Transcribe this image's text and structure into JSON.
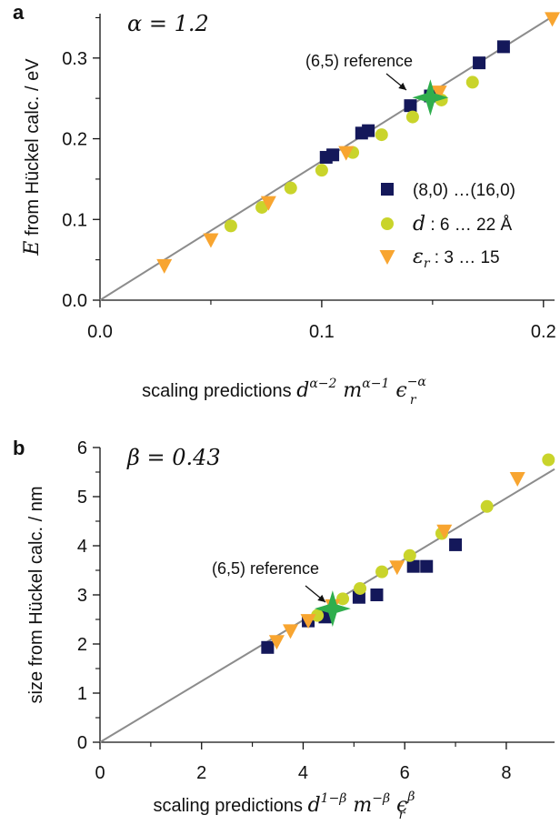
{
  "chart_data": [
    {
      "panel_label": "a",
      "type": "scatter",
      "param_text": "α = 1.2",
      "xlabel": "scaling predictions",
      "xlabel_math": {
        "d_exp": "α−2",
        "m_exp": "α−1",
        "eps_sub": "r",
        "eps_exp": "−α"
      },
      "ylabel_prefix": "E",
      "ylabel": " from Hückel calc. / eV",
      "xlim": [
        0,
        0.205
      ],
      "ylim": [
        0,
        0.355
      ],
      "xticks": [
        "0.0",
        "0.1",
        "0.2"
      ],
      "xtick_values": [
        0,
        0.1,
        0.2
      ],
      "yticks": [
        "0.0",
        "0.1",
        "0.2",
        "0.3"
      ],
      "ytick_values": [
        0,
        0.1,
        0.2,
        0.3
      ],
      "fit_line": {
        "from": [
          0,
          0
        ],
        "to": [
          0.205,
          0.353
        ]
      },
      "legend": {
        "placement": "right",
        "entries": [
          {
            "marker": "square",
            "label": "(8,0) …(16,0)"
          },
          {
            "marker": "circle",
            "label_prefix": "d",
            "label": " : 6 … 22 Å"
          },
          {
            "marker": "triangle",
            "label_prefix": "ε",
            "label_sub": "r",
            "label": " : 3 … 15"
          }
        ]
      },
      "annotation": {
        "text": "(6,5) reference",
        "point": [
          0.149,
          0.251
        ]
      },
      "series": [
        {
          "marker": "square",
          "color": "#14185a",
          "points": [
            [
              0.102,
              0.177
            ],
            [
              0.105,
              0.18
            ],
            [
              0.118,
              0.207
            ],
            [
              0.121,
              0.21
            ],
            [
              0.14,
              0.241
            ],
            [
              0.149,
              0.253
            ],
            [
              0.171,
              0.294
            ],
            [
              0.182,
              0.314
            ]
          ]
        },
        {
          "marker": "circle",
          "color": "#c9d42b",
          "points": [
            [
              0.059,
              0.092
            ],
            [
              0.073,
              0.115
            ],
            [
              0.086,
              0.139
            ],
            [
              0.1,
              0.161
            ],
            [
              0.114,
              0.183
            ],
            [
              0.127,
              0.205
            ],
            [
              0.141,
              0.227
            ],
            [
              0.154,
              0.248
            ],
            [
              0.168,
              0.27
            ]
          ]
        },
        {
          "marker": "triangle",
          "color": "#f8a530",
          "points": [
            [
              0.029,
              0.043
            ],
            [
              0.05,
              0.075
            ],
            [
              0.076,
              0.121
            ],
            [
              0.111,
              0.183
            ],
            [
              0.153,
              0.258
            ],
            [
              0.204,
              0.349
            ]
          ]
        },
        {
          "marker": "star",
          "color": "#2fae4d",
          "points": [
            [
              0.149,
              0.251
            ]
          ]
        }
      ]
    },
    {
      "panel_label": "b",
      "type": "scatter",
      "param_text": "β = 0.43",
      "xlabel": "scaling predictions",
      "xlabel_math": {
        "d_exp": "1−β",
        "m_exp": "−β",
        "eps_sub": "r",
        "eps_exp": "β"
      },
      "ylabel": "size from Hückel calc. / nm",
      "xlim": [
        0,
        8.95
      ],
      "ylim": [
        0,
        6.0
      ],
      "xticks": [
        "0",
        "2",
        "4",
        "6",
        "8"
      ],
      "xtick_values": [
        0,
        2,
        4,
        6,
        8
      ],
      "yticks": [
        "0",
        "1",
        "2",
        "3",
        "4",
        "5",
        "6"
      ],
      "ytick_values": [
        0,
        1,
        2,
        3,
        4,
        5,
        6
      ],
      "fit_line": {
        "from": [
          0,
          0
        ],
        "to": [
          8.95,
          5.56
        ]
      },
      "annotation": {
        "text": "(6,5) reference",
        "point": [
          4.58,
          2.72
        ]
      },
      "series": [
        {
          "marker": "square",
          "color": "#14185a",
          "points": [
            [
              3.3,
              1.93
            ],
            [
              4.1,
              2.47
            ],
            [
              4.43,
              2.55
            ],
            [
              5.1,
              2.95
            ],
            [
              5.45,
              3.0
            ],
            [
              6.17,
              3.58
            ],
            [
              6.43,
              3.58
            ],
            [
              7.0,
              4.02
            ]
          ]
        },
        {
          "marker": "circle",
          "color": "#c9d42b",
          "points": [
            [
              4.28,
              2.58
            ],
            [
              4.78,
              2.92
            ],
            [
              5.12,
              3.13
            ],
            [
              5.55,
              3.47
            ],
            [
              6.1,
              3.8
            ],
            [
              6.73,
              4.25
            ],
            [
              7.62,
              4.8
            ],
            [
              8.83,
              5.75
            ]
          ]
        },
        {
          "marker": "triangle",
          "color": "#f8a530",
          "points": [
            [
              3.48,
              2.05
            ],
            [
              3.75,
              2.27
            ],
            [
              4.1,
              2.48
            ],
            [
              4.58,
              2.78
            ],
            [
              5.85,
              3.57
            ],
            [
              6.78,
              4.3
            ],
            [
              8.22,
              5.37
            ]
          ]
        },
        {
          "marker": "star",
          "color": "#2fae4d",
          "points": [
            [
              4.58,
              2.72
            ]
          ]
        }
      ]
    }
  ]
}
